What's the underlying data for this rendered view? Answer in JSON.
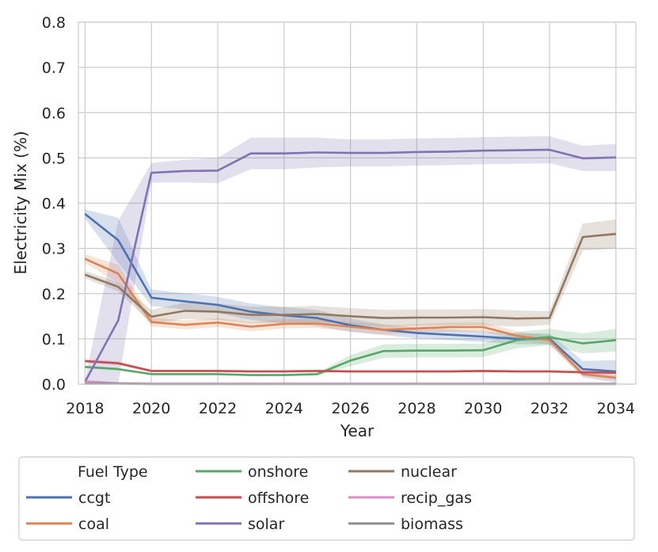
{
  "chart_data": {
    "type": "line",
    "xlabel": "Year",
    "ylabel": "Electricity Mix (%)",
    "xlim": [
      2017.8,
      2034.6
    ],
    "ylim": [
      0,
      0.8
    ],
    "xticks": [
      2018,
      2020,
      2022,
      2024,
      2026,
      2028,
      2030,
      2032,
      2034
    ],
    "yticks": [
      "0.0",
      "0.1",
      "0.2",
      "0.3",
      "0.4",
      "0.5",
      "0.6",
      "0.7",
      "0.8"
    ],
    "grid": true,
    "legend": {
      "title": "Fuel Type",
      "placement": "bottom"
    },
    "x": [
      2018,
      2019,
      2020,
      2021,
      2022,
      2023,
      2024,
      2025,
      2026,
      2027,
      2028,
      2029,
      2030,
      2031,
      2032,
      2033,
      2034
    ],
    "series": [
      {
        "name": "ccgt",
        "color": "#4c72b0",
        "values": [
          0.376,
          0.318,
          0.191,
          0.183,
          0.175,
          0.16,
          0.152,
          0.146,
          0.13,
          0.12,
          0.113,
          0.109,
          0.105,
          0.1,
          0.1,
          0.033,
          0.028
        ],
        "ci": [
          0.01,
          0.05,
          0.018,
          0.018,
          0.018,
          0.018,
          0.018,
          0.018,
          0.015,
          0.012,
          0.012,
          0.012,
          0.012,
          0.012,
          0.012,
          0.018,
          0.025
        ]
      },
      {
        "name": "coal",
        "color": "#dd8452",
        "values": [
          0.277,
          0.244,
          0.137,
          0.131,
          0.136,
          0.127,
          0.133,
          0.134,
          0.127,
          0.12,
          0.123,
          0.126,
          0.126,
          0.107,
          0.097,
          0.022,
          0.014
        ],
        "ci": [
          0.01,
          0.02,
          0.01,
          0.01,
          0.01,
          0.01,
          0.01,
          0.01,
          0.01,
          0.01,
          0.01,
          0.01,
          0.01,
          0.01,
          0.01,
          0.005,
          0.005
        ]
      },
      {
        "name": "onshore",
        "color": "#55a868",
        "values": [
          0.038,
          0.033,
          0.022,
          0.022,
          0.022,
          0.02,
          0.02,
          0.022,
          0.052,
          0.073,
          0.074,
          0.074,
          0.075,
          0.097,
          0.104,
          0.09,
          0.097
        ],
        "ci": [
          0.003,
          0.003,
          0.002,
          0.002,
          0.002,
          0.002,
          0.002,
          0.003,
          0.012,
          0.015,
          0.015,
          0.015,
          0.015,
          0.018,
          0.018,
          0.022,
          0.025
        ]
      },
      {
        "name": "offshore",
        "color": "#c44e52",
        "values": [
          0.051,
          0.046,
          0.029,
          0.029,
          0.029,
          0.028,
          0.028,
          0.029,
          0.028,
          0.028,
          0.028,
          0.028,
          0.029,
          0.028,
          0.028,
          0.026,
          0.025
        ],
        "ci": [
          0.004,
          0.004,
          0.003,
          0.003,
          0.003,
          0.003,
          0.003,
          0.003,
          0.003,
          0.003,
          0.003,
          0.003,
          0.003,
          0.003,
          0.003,
          0.003,
          0.003
        ]
      },
      {
        "name": "solar",
        "color": "#8172b3",
        "values": [
          0.005,
          0.141,
          0.467,
          0.471,
          0.472,
          0.51,
          0.51,
          0.512,
          0.511,
          0.511,
          0.513,
          0.514,
          0.516,
          0.517,
          0.518,
          0.499,
          0.501
        ],
        "ci": [
          0.005,
          0.22,
          0.022,
          0.025,
          0.028,
          0.035,
          0.035,
          0.033,
          0.03,
          0.03,
          0.03,
          0.03,
          0.03,
          0.03,
          0.03,
          0.028,
          0.03
        ]
      },
      {
        "name": "nuclear",
        "color": "#937860",
        "values": [
          0.242,
          0.215,
          0.149,
          0.162,
          0.16,
          0.153,
          0.153,
          0.155,
          0.15,
          0.146,
          0.147,
          0.147,
          0.148,
          0.145,
          0.146,
          0.325,
          0.332
        ],
        "ci": [
          0.008,
          0.01,
          0.015,
          0.018,
          0.018,
          0.018,
          0.018,
          0.018,
          0.018,
          0.018,
          0.018,
          0.018,
          0.018,
          0.018,
          0.015,
          0.03,
          0.032
        ]
      },
      {
        "name": "recip_gas",
        "color": "#da8bc3",
        "values": [
          0.006,
          0.002,
          0.001,
          0.001,
          0.001,
          0.001,
          0.001,
          0.001,
          0.001,
          0.001,
          0.001,
          0.001,
          0.001,
          0.001,
          0.001,
          0.001,
          0.001
        ],
        "ci": [
          0.001,
          0.001,
          0.0,
          0.0,
          0.0,
          0.0,
          0.0,
          0.0,
          0.0,
          0.0,
          0.0,
          0.0,
          0.0,
          0.0,
          0.0,
          0.0,
          0.0
        ]
      },
      {
        "name": "biomass",
        "color": "#8c8c8c",
        "values": [
          0.001,
          0.001,
          0.0,
          0.0,
          0.0,
          0.0,
          0.0,
          0.0,
          0.0,
          0.0,
          0.0,
          0.0,
          0.0,
          0.0,
          0.0,
          0.0,
          0.0
        ],
        "ci": [
          0.0,
          0.0,
          0.0,
          0.0,
          0.0,
          0.0,
          0.0,
          0.0,
          0.0,
          0.0,
          0.0,
          0.0,
          0.0,
          0.0,
          0.0,
          0.0,
          0.0
        ]
      }
    ]
  }
}
